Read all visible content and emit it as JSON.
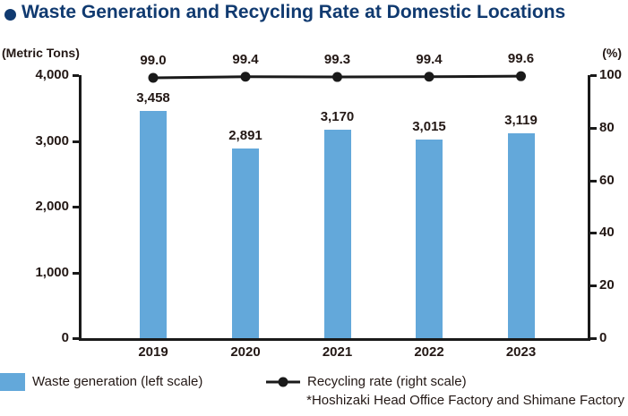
{
  "title": "Waste Generation and Recycling Rate at Domestic Locations",
  "chart_data": {
    "type": "bar",
    "categories": [
      "2019",
      "2020",
      "2021",
      "2022",
      "2023"
    ],
    "series": [
      {
        "name": "Waste generation (left scale)",
        "type": "bar",
        "axis": "left",
        "values": [
          3458,
          2891,
          3170,
          3015,
          3119
        ],
        "labels": [
          "3,458",
          "2,891",
          "3,170",
          "3,015",
          "3,119"
        ]
      },
      {
        "name": "Recycling rate (right scale)",
        "type": "line",
        "axis": "right",
        "values": [
          99.0,
          99.4,
          99.3,
          99.4,
          99.6
        ],
        "labels": [
          "99.0",
          "99.4",
          "99.3",
          "99.4",
          "99.6"
        ]
      }
    ],
    "left_axis": {
      "unit": "(Metric Tons)",
      "min": 0,
      "max": 4000,
      "ticks": [
        4000,
        3000,
        2000,
        1000,
        0
      ],
      "tick_labels": [
        "4,000",
        "3,000",
        "2,000",
        "1,000",
        "0"
      ]
    },
    "right_axis": {
      "unit": "(%)",
      "min": 0,
      "max": 100,
      "ticks": [
        100,
        80,
        60,
        40,
        20,
        0
      ],
      "tick_labels": [
        "100",
        "80",
        "60",
        "40",
        "20",
        "0"
      ]
    },
    "grid": "off",
    "legend_position": "bottom-left"
  },
  "legend": [
    {
      "swatch": "bar-square",
      "label": "Waste generation (left scale)"
    },
    {
      "swatch": "line-dot",
      "label": "Recycling rate (right scale)"
    }
  ],
  "footnote": "*Hoshizaki Head Office Factory and Shimane Factory",
  "colors": {
    "title": "#103a70",
    "bar": "#63a8da",
    "line": "#1a1a1a",
    "text": "#231815"
  }
}
